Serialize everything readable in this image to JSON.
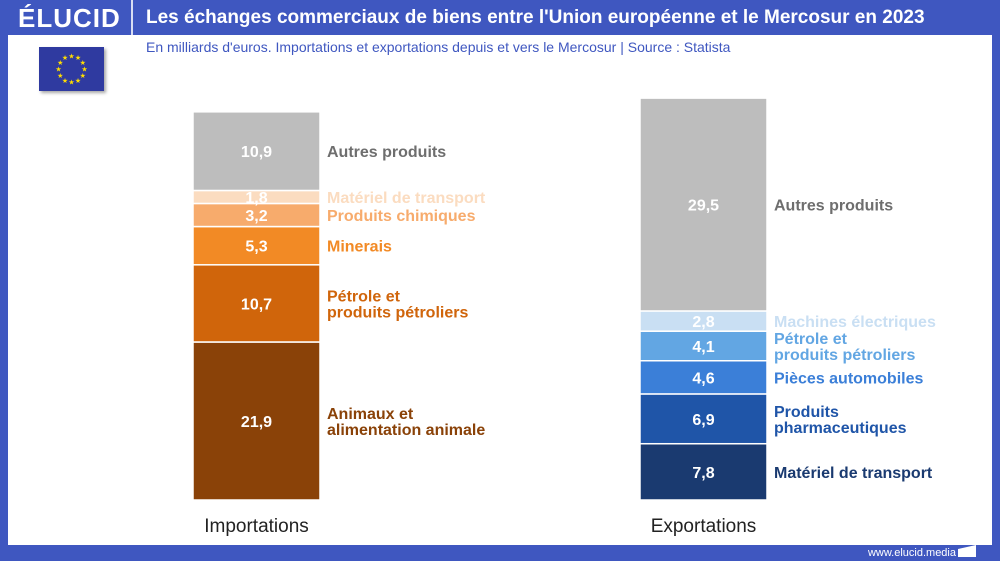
{
  "header": {
    "logo": "ÉLUCID",
    "title": "Les échanges commerciaux de biens entre l'Union européenne et le Mercosur en 2023"
  },
  "subtitle": "En milliards d'euros. Importations et exportations depuis et vers le Mercosur  |  Source : Statista",
  "footer": {
    "url": "www.elucid.media"
  },
  "chart_data": {
    "type": "bar",
    "stacked": true,
    "unit": "milliards d'euros",
    "categories": [
      "Importations",
      "Exportations"
    ],
    "stacks": [
      {
        "category": "Importations",
        "segments": [
          {
            "name": "Animaux et\nalimentation animale",
            "value": 21.9,
            "label": "21,9",
            "color": "#8a4208"
          },
          {
            "name": "Pétrole et\nproduits pétroliers",
            "value": 10.7,
            "label": "10,7",
            "color": "#d0650b"
          },
          {
            "name": "Minerais",
            "value": 5.3,
            "label": "5,3",
            "color": "#f28a25"
          },
          {
            "name": "Produits chimiques",
            "value": 3.2,
            "label": "3,2",
            "color": "#f7ab6c"
          },
          {
            "name": "Matériel de transport",
            "value": 1.8,
            "label": "1,8",
            "color": "#fbdcc0"
          },
          {
            "name": "Autres produits",
            "value": 10.9,
            "label": "10,9",
            "color": "#bdbdbd"
          }
        ]
      },
      {
        "category": "Exportations",
        "segments": [
          {
            "name": "Matériel de transport",
            "value": 7.8,
            "label": "7,8",
            "color": "#1a3a70"
          },
          {
            "name": "Produits\npharmaceutiques",
            "value": 6.9,
            "label": "6,9",
            "color": "#1f55a8"
          },
          {
            "name": "Pièces automobiles",
            "value": 4.6,
            "label": "4,6",
            "color": "#3b7fd8"
          },
          {
            "name": "Pétrole et\nproduits pétroliers",
            "value": 4.1,
            "label": "4,1",
            "color": "#62a6e3"
          },
          {
            "name": "Machines électriques",
            "value": 2.8,
            "label": "2,8",
            "color": "#c9dff3"
          },
          {
            "name": "Autres produits",
            "value": 29.5,
            "label": "29,5",
            "color": "#bdbdbd"
          }
        ]
      }
    ],
    "label_text_colors": {
      "Autres produits": "#6e6e6e"
    },
    "grid": false,
    "legend": "inline-right"
  }
}
